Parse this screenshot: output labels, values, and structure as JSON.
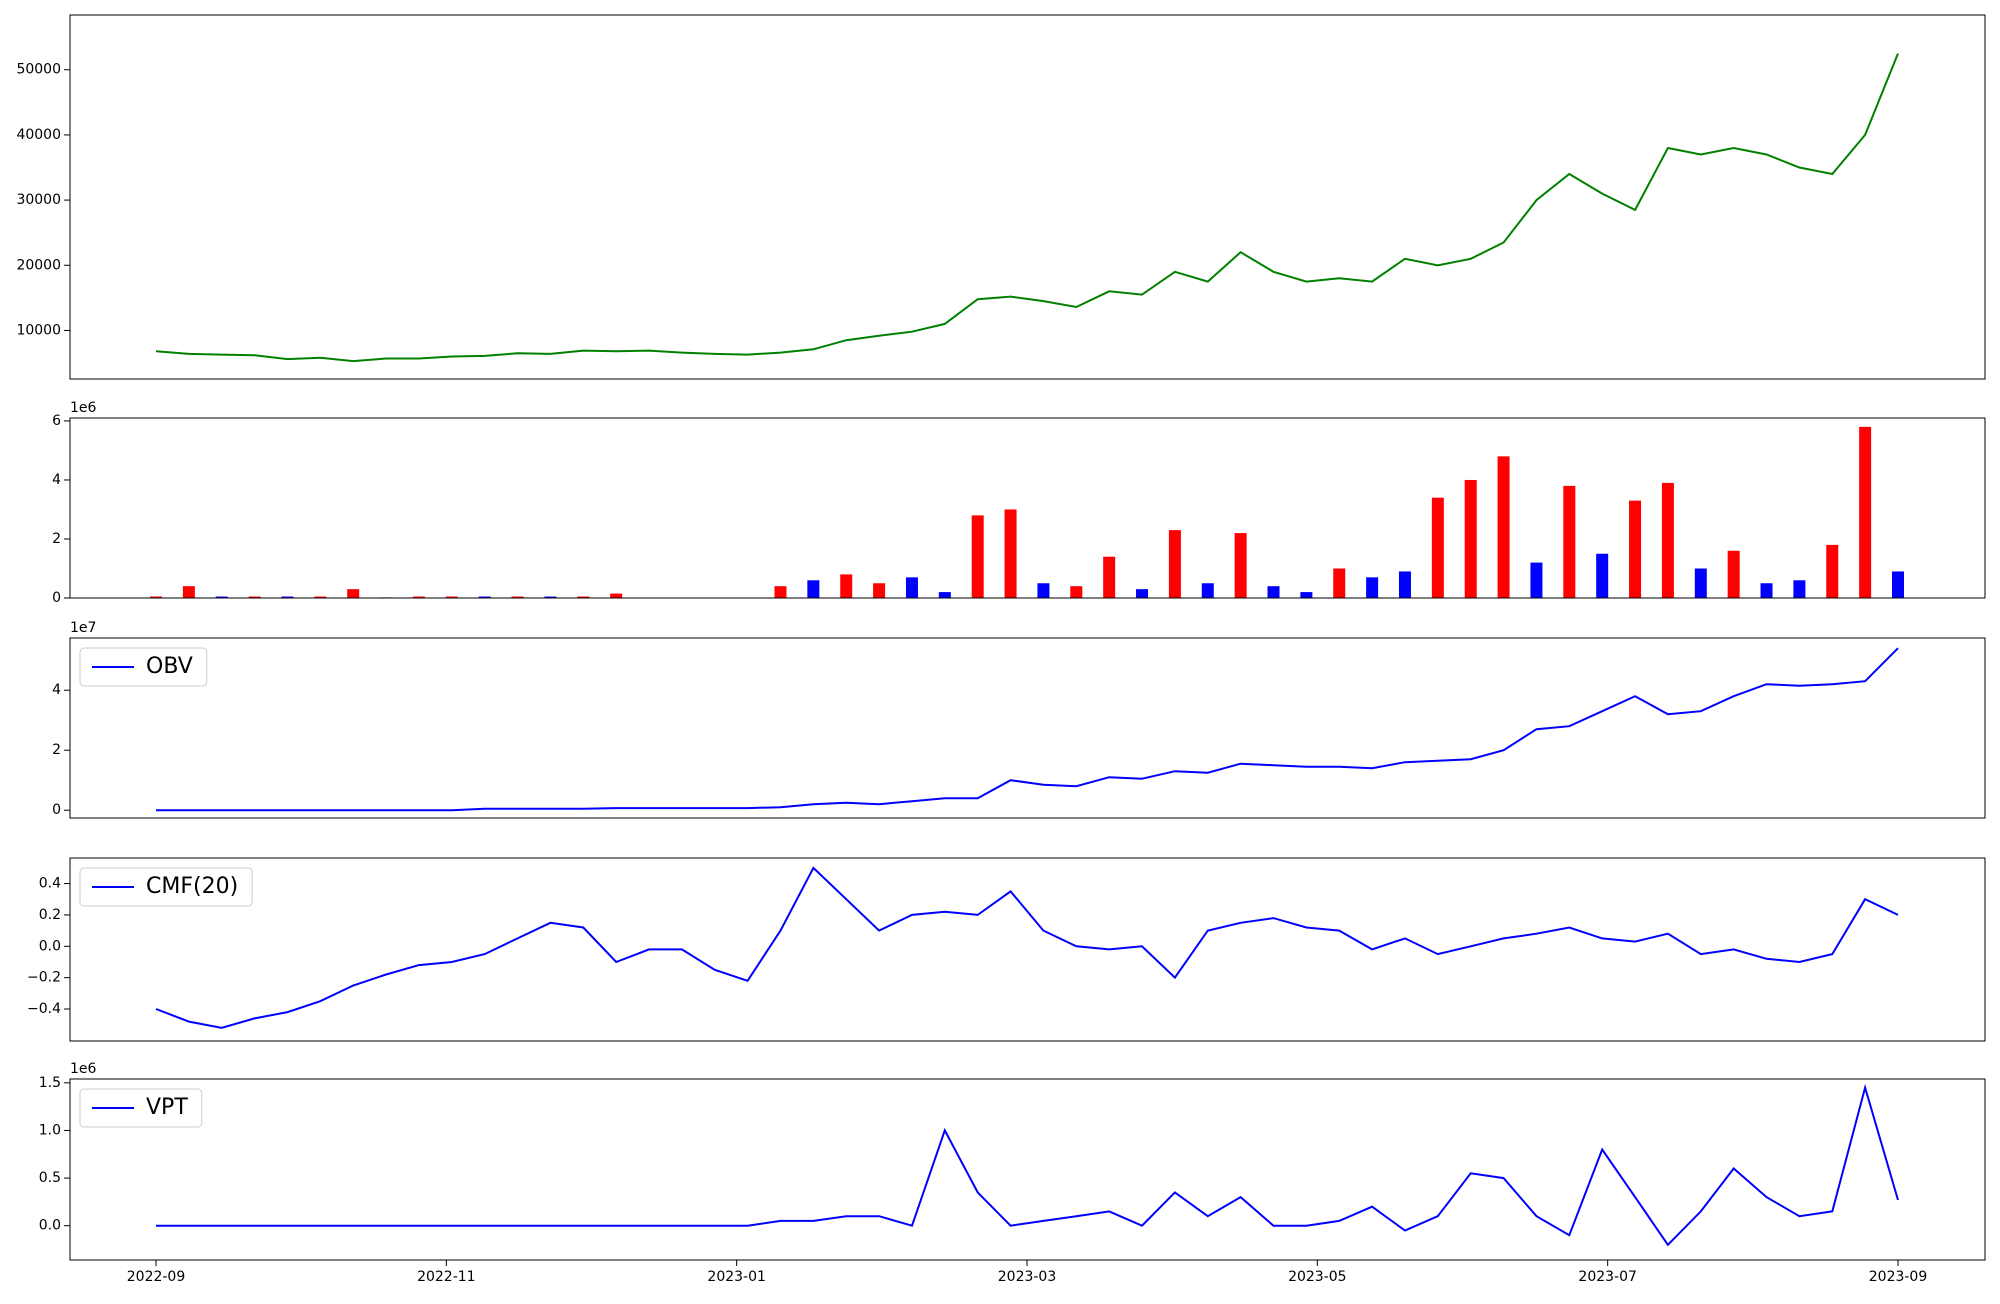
{
  "chart_data": [
    {
      "type": "line",
      "color": "#008000",
      "values": [
        6800,
        6400,
        6300,
        6200,
        5600,
        5800,
        5300,
        5700,
        5700,
        6000,
        6100,
        6500,
        6400,
        6900,
        6800,
        6900,
        6600,
        6400,
        6300,
        6600,
        7100,
        8500,
        9200,
        9800,
        11000,
        14800,
        15200,
        14500,
        13600,
        16000,
        15500,
        19000,
        17500,
        22000,
        19000,
        17500,
        18000,
        17500,
        21000,
        20000,
        21000,
        23500,
        30000,
        34000,
        31000,
        28500,
        38000,
        37000,
        38000,
        37000,
        35000,
        34000,
        40000,
        52500
      ],
      "ylim": [
        2550,
        58400
      ],
      "yticks": [
        10000,
        20000,
        30000,
        40000,
        50000
      ]
    },
    {
      "type": "bar",
      "offset_text": "1e6",
      "values": [
        0.05,
        0.4,
        0.05,
        0.05,
        0.05,
        0.05,
        0.3,
        0.02,
        0.05,
        0.05,
        0.05,
        0.05,
        0.05,
        0.05,
        0.15,
        0,
        0,
        0,
        0,
        0.4,
        0.6,
        0.8,
        0.5,
        0.7,
        0.2,
        2.8,
        3.0,
        0.5,
        0.4,
        1.4,
        0.3,
        2.3,
        0.5,
        2.2,
        0.4,
        0.2,
        1.0,
        0.7,
        0.9,
        3.4,
        4.0,
        4.8,
        1.2,
        3.8,
        1.5,
        3.3,
        3.9,
        1.0,
        1.6,
        0.5,
        0.6,
        1.8,
        5.8,
        0.9
      ],
      "colors": [
        "#ff0000",
        "#ff0000",
        "#0000ff",
        "#ff0000",
        "#0000ff",
        "#ff0000",
        "#ff0000",
        "#0000ff",
        "#ff0000",
        "#ff0000",
        "#0000ff",
        "#ff0000",
        "#0000ff",
        "#ff0000",
        "#ff0000",
        "#0000ff",
        "#0000ff",
        "#0000ff",
        "#0000ff",
        "#ff0000",
        "#0000ff",
        "#ff0000",
        "#ff0000",
        "#0000ff",
        "#0000ff",
        "#ff0000",
        "#ff0000",
        "#0000ff",
        "#ff0000",
        "#ff0000",
        "#0000ff",
        "#ff0000",
        "#0000ff",
        "#ff0000",
        "#0000ff",
        "#0000ff",
        "#ff0000",
        "#0000ff",
        "#0000ff",
        "#ff0000",
        "#ff0000",
        "#ff0000",
        "#0000ff",
        "#ff0000",
        "#0000ff",
        "#ff0000",
        "#ff0000",
        "#0000ff",
        "#ff0000",
        "#0000ff",
        "#0000ff",
        "#ff0000",
        "#ff0000",
        "#0000ff"
      ],
      "ylim": [
        0,
        6.1
      ],
      "yticks": [
        0,
        2,
        4,
        6
      ]
    },
    {
      "type": "line",
      "offset_text": "1e7",
      "legend": "upper left",
      "series": [
        {
          "name": "OBV",
          "color": "#0000ff",
          "values": [
            0,
            0,
            0,
            0,
            0,
            0,
            0,
            0,
            0,
            0,
            0.05,
            0.05,
            0.05,
            0.05,
            0.07,
            0.07,
            0.07,
            0.07,
            0.07,
            0.1,
            0.2,
            0.25,
            0.2,
            0.3,
            0.4,
            0.4,
            1.0,
            0.85,
            0.8,
            1.1,
            1.05,
            1.3,
            1.25,
            1.55,
            1.5,
            1.45,
            1.45,
            1.4,
            1.6,
            1.65,
            1.7,
            2.0,
            2.7,
            2.8,
            3.3,
            3.8,
            3.2,
            3.3,
            3.8,
            4.2,
            4.15,
            4.2,
            4.3,
            5.4
          ]
        }
      ],
      "ylim": [
        -0.26,
        5.74
      ],
      "yticks": [
        0,
        2,
        4
      ]
    },
    {
      "type": "line",
      "legend": "upper left",
      "series": [
        {
          "name": "CMF(20)",
          "color": "#0000ff",
          "values": [
            -0.4,
            -0.48,
            -0.52,
            -0.46,
            -0.42,
            -0.35,
            -0.25,
            -0.18,
            -0.12,
            -0.1,
            -0.05,
            0.05,
            0.15,
            0.12,
            -0.1,
            -0.02,
            -0.02,
            -0.15,
            -0.22,
            0.1,
            0.5,
            0.3,
            0.1,
            0.2,
            0.22,
            0.2,
            0.35,
            0.1,
            0.0,
            -0.02,
            0.0,
            -0.2,
            0.1,
            0.15,
            0.18,
            0.12,
            0.1,
            -0.02,
            0.05,
            -0.05,
            0.0,
            0.05,
            0.08,
            0.12,
            0.05,
            0.03,
            0.08,
            -0.05,
            -0.02,
            -0.08,
            -0.1,
            -0.05,
            0.3,
            0.2
          ]
        }
      ],
      "ylim": [
        -0.604,
        0.563
      ],
      "yticks": [
        {
          "value": -0.4,
          "label": "−0.4"
        },
        {
          "value": -0.2,
          "label": "−0.2"
        },
        {
          "value": 0,
          "label": "0.0"
        },
        0.2,
        0.4
      ]
    },
    {
      "type": "line",
      "offset_text": "1e6",
      "legend": "upper left",
      "series": [
        {
          "name": "VPT",
          "color": "#0000ff",
          "values": [
            0,
            0,
            0,
            0,
            0,
            0,
            0,
            0,
            0,
            0,
            0,
            0,
            0,
            0,
            0,
            0,
            0,
            0,
            0,
            0.05,
            0.05,
            0.1,
            0.1,
            0,
            1.0,
            0.35,
            0,
            0.05,
            0.1,
            0.15,
            0,
            0.35,
            0.1,
            0.3,
            0,
            0,
            0.05,
            0.2,
            -0.05,
            0.1,
            0.55,
            0.5,
            0.1,
            -0.1,
            0.8,
            0.3,
            -0.2,
            0.15,
            0.6,
            0.3,
            0.1,
            0.15,
            1.45,
            0.27
          ]
        }
      ],
      "ylim": [
        -0.36,
        1.54
      ],
      "yticks": [
        {
          "value": 0,
          "label": "0.0"
        },
        0.5,
        {
          "value": 1,
          "label": "1.0"
        },
        1.5
      ],
      "xticks": [
        "2022-09",
        "2022-11",
        "2023-01",
        "2023-03",
        "2023-05",
        "2023-07",
        "2023-09"
      ]
    }
  ]
}
